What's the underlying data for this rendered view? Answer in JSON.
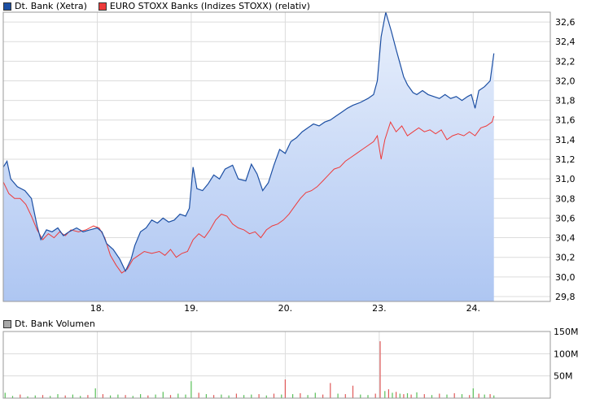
{
  "legend_top": [
    {
      "label": "Dt. Bank (Xetra)",
      "color": "#1c4fa3"
    },
    {
      "label": "EURO STOXX Banks (Indizes STOXX) (relativ)",
      "color": "#ee3a3a"
    }
  ],
  "legend_bottom": [
    {
      "label": "Dt. Bank Volumen",
      "color": "#a8a8a8"
    }
  ],
  "colors": {
    "price_line": "#1c4fa3",
    "relative_line": "#ee3a3a",
    "area_top": "#e9f0fc",
    "area_bottom": "#aec6f2",
    "grid": "#dcdcdc",
    "volume_up": "#58c058",
    "volume_down": "#e05a5a"
  },
  "chart_data": [
    {
      "type": "line",
      "y_axis_side": "right",
      "ylim": [
        29.75,
        32.7
      ],
      "y_ticks": [
        29.8,
        30.0,
        30.2,
        30.4,
        30.6,
        30.8,
        31.0,
        31.2,
        31.4,
        31.6,
        31.8,
        32.0,
        32.2,
        32.4,
        32.6
      ],
      "y_tick_labels": [
        "29,8",
        "30,0",
        "30,2",
        "30,4",
        "30,6",
        "30,8",
        "31,0",
        "31,2",
        "31,4",
        "31,6",
        "31,8",
        "32,0",
        "32,2",
        "32,4",
        "32,6"
      ],
      "x_tick_labels": [
        "18.",
        "19.",
        "20.",
        "23.",
        "24."
      ],
      "xlim": [
        0,
        5.82
      ],
      "x_ticks": [
        1,
        2,
        3,
        4,
        5
      ],
      "grid": true,
      "series": [
        {
          "name": "Dt. Bank (Xetra)",
          "area": true,
          "points": [
            [
              0.0,
              31.12
            ],
            [
              0.04,
              31.18
            ],
            [
              0.08,
              31.0
            ],
            [
              0.15,
              30.92
            ],
            [
              0.23,
              30.88
            ],
            [
              0.3,
              30.8
            ],
            [
              0.36,
              30.52
            ],
            [
              0.4,
              30.38
            ],
            [
              0.46,
              30.48
            ],
            [
              0.52,
              30.46
            ],
            [
              0.58,
              30.5
            ],
            [
              0.64,
              30.42
            ],
            [
              0.7,
              30.46
            ],
            [
              0.78,
              30.5
            ],
            [
              0.85,
              30.46
            ],
            [
              0.92,
              30.48
            ],
            [
              1.0,
              30.5
            ],
            [
              1.05,
              30.46
            ],
            [
              1.1,
              30.34
            ],
            [
              1.17,
              30.28
            ],
            [
              1.24,
              30.18
            ],
            [
              1.3,
              30.06
            ],
            [
              1.36,
              30.18
            ],
            [
              1.4,
              30.32
            ],
            [
              1.46,
              30.46
            ],
            [
              1.52,
              30.5
            ],
            [
              1.58,
              30.58
            ],
            [
              1.64,
              30.55
            ],
            [
              1.7,
              30.6
            ],
            [
              1.76,
              30.56
            ],
            [
              1.82,
              30.58
            ],
            [
              1.88,
              30.64
            ],
            [
              1.94,
              30.62
            ],
            [
              1.98,
              30.7
            ],
            [
              2.02,
              31.12
            ],
            [
              2.06,
              30.9
            ],
            [
              2.12,
              30.88
            ],
            [
              2.18,
              30.95
            ],
            [
              2.24,
              31.04
            ],
            [
              2.3,
              31.0
            ],
            [
              2.36,
              31.1
            ],
            [
              2.44,
              31.14
            ],
            [
              2.5,
              31.0
            ],
            [
              2.58,
              30.98
            ],
            [
              2.64,
              31.15
            ],
            [
              2.7,
              31.05
            ],
            [
              2.76,
              30.88
            ],
            [
              2.82,
              30.96
            ],
            [
              2.88,
              31.14
            ],
            [
              2.94,
              31.3
            ],
            [
              3.0,
              31.26
            ],
            [
              3.06,
              31.38
            ],
            [
              3.12,
              31.42
            ],
            [
              3.18,
              31.48
            ],
            [
              3.24,
              31.52
            ],
            [
              3.3,
              31.56
            ],
            [
              3.36,
              31.54
            ],
            [
              3.42,
              31.58
            ],
            [
              3.48,
              31.6
            ],
            [
              3.54,
              31.64
            ],
            [
              3.6,
              31.68
            ],
            [
              3.66,
              31.72
            ],
            [
              3.72,
              31.75
            ],
            [
              3.8,
              31.78
            ],
            [
              3.88,
              31.82
            ],
            [
              3.94,
              31.86
            ],
            [
              3.98,
              32.0
            ],
            [
              4.02,
              32.45
            ],
            [
              4.07,
              32.7
            ],
            [
              4.13,
              32.5
            ],
            [
              4.18,
              32.32
            ],
            [
              4.22,
              32.18
            ],
            [
              4.26,
              32.04
            ],
            [
              4.3,
              31.96
            ],
            [
              4.36,
              31.88
            ],
            [
              4.4,
              31.86
            ],
            [
              4.46,
              31.9
            ],
            [
              4.52,
              31.86
            ],
            [
              4.58,
              31.84
            ],
            [
              4.64,
              31.82
            ],
            [
              4.7,
              31.86
            ],
            [
              4.76,
              31.82
            ],
            [
              4.82,
              31.84
            ],
            [
              4.88,
              31.8
            ],
            [
              4.94,
              31.84
            ],
            [
              4.98,
              31.86
            ],
            [
              5.02,
              31.72
            ],
            [
              5.06,
              31.9
            ],
            [
              5.12,
              31.94
            ],
            [
              5.18,
              32.0
            ],
            [
              5.22,
              32.28
            ]
          ]
        },
        {
          "name": "EURO STOXX Banks (Indizes STOXX) (relativ)",
          "area": false,
          "points": [
            [
              0.0,
              30.97
            ],
            [
              0.06,
              30.85
            ],
            [
              0.12,
              30.8
            ],
            [
              0.18,
              30.8
            ],
            [
              0.24,
              30.74
            ],
            [
              0.3,
              30.62
            ],
            [
              0.36,
              30.48
            ],
            [
              0.42,
              30.38
            ],
            [
              0.48,
              30.44
            ],
            [
              0.54,
              30.4
            ],
            [
              0.6,
              30.46
            ],
            [
              0.66,
              30.42
            ],
            [
              0.72,
              30.48
            ],
            [
              0.8,
              30.46
            ],
            [
              0.88,
              30.48
            ],
            [
              0.96,
              30.52
            ],
            [
              1.02,
              30.5
            ],
            [
              1.08,
              30.4
            ],
            [
              1.14,
              30.22
            ],
            [
              1.2,
              30.12
            ],
            [
              1.26,
              30.04
            ],
            [
              1.32,
              30.08
            ],
            [
              1.38,
              30.18
            ],
            [
              1.44,
              30.22
            ],
            [
              1.5,
              30.26
            ],
            [
              1.58,
              30.24
            ],
            [
              1.66,
              30.26
            ],
            [
              1.72,
              30.22
            ],
            [
              1.78,
              30.28
            ],
            [
              1.84,
              30.2
            ],
            [
              1.9,
              30.24
            ],
            [
              1.96,
              30.26
            ],
            [
              2.02,
              30.38
            ],
            [
              2.08,
              30.44
            ],
            [
              2.14,
              30.4
            ],
            [
              2.2,
              30.48
            ],
            [
              2.26,
              30.58
            ],
            [
              2.32,
              30.64
            ],
            [
              2.38,
              30.62
            ],
            [
              2.44,
              30.54
            ],
            [
              2.5,
              30.5
            ],
            [
              2.56,
              30.48
            ],
            [
              2.62,
              30.44
            ],
            [
              2.68,
              30.46
            ],
            [
              2.74,
              30.4
            ],
            [
              2.8,
              30.48
            ],
            [
              2.86,
              30.52
            ],
            [
              2.92,
              30.54
            ],
            [
              2.98,
              30.58
            ],
            [
              3.04,
              30.64
            ],
            [
              3.1,
              30.72
            ],
            [
              3.16,
              30.8
            ],
            [
              3.22,
              30.86
            ],
            [
              3.28,
              30.88
            ],
            [
              3.34,
              30.92
            ],
            [
              3.4,
              30.98
            ],
            [
              3.46,
              31.04
            ],
            [
              3.52,
              31.1
            ],
            [
              3.58,
              31.12
            ],
            [
              3.64,
              31.18
            ],
            [
              3.7,
              31.22
            ],
            [
              3.76,
              31.26
            ],
            [
              3.82,
              31.3
            ],
            [
              3.88,
              31.34
            ],
            [
              3.94,
              31.38
            ],
            [
              3.98,
              31.44
            ],
            [
              4.02,
              31.2
            ],
            [
              4.06,
              31.4
            ],
            [
              4.12,
              31.58
            ],
            [
              4.18,
              31.48
            ],
            [
              4.24,
              31.54
            ],
            [
              4.3,
              31.44
            ],
            [
              4.36,
              31.48
            ],
            [
              4.42,
              31.52
            ],
            [
              4.48,
              31.48
            ],
            [
              4.54,
              31.5
            ],
            [
              4.6,
              31.46
            ],
            [
              4.66,
              31.5
            ],
            [
              4.72,
              31.4
            ],
            [
              4.78,
              31.44
            ],
            [
              4.84,
              31.46
            ],
            [
              4.9,
              31.44
            ],
            [
              4.96,
              31.48
            ],
            [
              5.02,
              31.44
            ],
            [
              5.08,
              31.52
            ],
            [
              5.14,
              31.54
            ],
            [
              5.2,
              31.58
            ],
            [
              5.22,
              31.64
            ]
          ]
        }
      ]
    },
    {
      "type": "bar",
      "y_axis_side": "right",
      "ylim": [
        0,
        150
      ],
      "y_ticks": [
        50,
        100,
        150
      ],
      "y_tick_labels": [
        "50M",
        "100M",
        "150M"
      ],
      "xlim": [
        0,
        5.82
      ],
      "grid": true,
      "series": [
        {
          "name": "Dt. Bank Volumen",
          "x_values": [
            0.02,
            0.1,
            0.18,
            0.26,
            0.34,
            0.42,
            0.5,
            0.58,
            0.66,
            0.74,
            0.82,
            0.9,
            0.98,
            1.06,
            1.14,
            1.22,
            1.3,
            1.38,
            1.46,
            1.54,
            1.62,
            1.7,
            1.78,
            1.86,
            1.94,
            2.0,
            2.08,
            2.16,
            2.24,
            2.32,
            2.4,
            2.48,
            2.56,
            2.64,
            2.72,
            2.8,
            2.88,
            2.96,
            3.0,
            3.08,
            3.16,
            3.24,
            3.32,
            3.4,
            3.48,
            3.56,
            3.64,
            3.72,
            3.8,
            3.88,
            3.96,
            4.01,
            4.06,
            4.1,
            4.14,
            4.18,
            4.22,
            4.26,
            4.3,
            4.34,
            4.4,
            4.48,
            4.56,
            4.64,
            4.72,
            4.8,
            4.88,
            4.96,
            5.0,
            5.06,
            5.12,
            5.18,
            5.22
          ],
          "values": [
            12,
            5,
            8,
            4,
            6,
            7,
            5,
            9,
            6,
            8,
            5,
            7,
            22,
            9,
            6,
            8,
            7,
            5,
            9,
            6,
            8,
            14,
            7,
            10,
            8,
            38,
            12,
            9,
            7,
            8,
            6,
            10,
            7,
            8,
            9,
            6,
            10,
            8,
            42,
            9,
            11,
            7,
            12,
            8,
            34,
            10,
            9,
            28,
            8,
            7,
            10,
            128,
            16,
            20,
            12,
            14,
            10,
            9,
            11,
            8,
            13,
            9,
            7,
            10,
            8,
            11,
            9,
            7,
            22,
            10,
            8,
            9,
            6
          ],
          "up": [
            true,
            true,
            false,
            true,
            true,
            false,
            true,
            true,
            false,
            true,
            true,
            false,
            true,
            false,
            true,
            true,
            false,
            true,
            true,
            false,
            true,
            true,
            false,
            true,
            true,
            true,
            false,
            true,
            false,
            true,
            true,
            false,
            true,
            true,
            false,
            true,
            false,
            true,
            false,
            true,
            false,
            true,
            true,
            false,
            false,
            true,
            false,
            false,
            true,
            true,
            false,
            false,
            true,
            false,
            true,
            false,
            true,
            false,
            true,
            false,
            true,
            false,
            true,
            false,
            true,
            false,
            true,
            false,
            true,
            false,
            true,
            false,
            true
          ]
        }
      ]
    }
  ]
}
